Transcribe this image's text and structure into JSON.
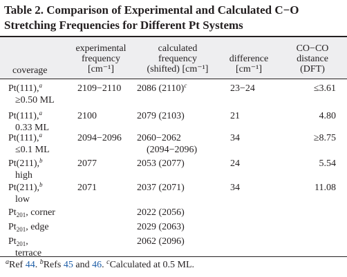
{
  "table": {
    "title_line1": "Table 2. Comparison of Experimental and Calculated C−O",
    "title_line2": "Stretching Frequencies for Different Pt Systems",
    "headers": {
      "coverage": "coverage",
      "experimental": [
        "experimental",
        "frequency",
        "[cm⁻¹]"
      ],
      "calculated": [
        "calculated",
        "frequency",
        "(shifted) [cm⁻¹]"
      ],
      "difference": [
        "difference",
        "[cm⁻¹]"
      ],
      "distance": [
        "CO−CO",
        "distance",
        "(DFT)"
      ]
    },
    "rows": [
      {
        "site": "Pt(111),",
        "sup": "a",
        "sub": "",
        "coverage2": "≥0.50 ML",
        "experimental": "2109−2110",
        "calculated": "2086 (2110)",
        "calc_sup": "c",
        "calculated2": "",
        "difference": "23−24",
        "distance": "≤3.61"
      },
      {
        "site": "Pt(111),",
        "sup": "a",
        "sub": "",
        "coverage2": "0.33 ML",
        "experimental": "2100",
        "calculated": "2079 (2103)",
        "calc_sup": "",
        "calculated2": "",
        "difference": "21",
        "distance": "4.80"
      },
      {
        "site": "Pt(111),",
        "sup": "a",
        "sub": "",
        "coverage2": "≤0.1 ML",
        "experimental": "2094−2096",
        "calculated": "2060−2062",
        "calc_sup": "",
        "calculated2": "(2094−2096)",
        "difference": "34",
        "distance": "≥8.75"
      },
      {
        "site": "Pt(211),",
        "sup": "b",
        "sub": "",
        "coverage2": "high",
        "experimental": "2077",
        "calculated": "2053 (2077)",
        "calc_sup": "",
        "calculated2": "",
        "difference": "24",
        "distance": "5.54"
      },
      {
        "site": "Pt(211),",
        "sup": "b",
        "sub": "",
        "coverage2": "low",
        "experimental": "2071",
        "calculated": "2037 (2071)",
        "calc_sup": "",
        "calculated2": "",
        "difference": "34",
        "distance": "11.08"
      },
      {
        "site": "Pt",
        "sup": "",
        "sub": "201",
        "tail": ", corner",
        "coverage2": "",
        "experimental": "",
        "calculated": "2022 (2056)",
        "calc_sup": "",
        "calculated2": "",
        "difference": "",
        "distance": ""
      },
      {
        "site": "Pt",
        "sup": "",
        "sub": "201",
        "tail": ", edge",
        "coverage2": "",
        "experimental": "",
        "calculated": "2029 (2063)",
        "calc_sup": "",
        "calculated2": "",
        "difference": "",
        "distance": ""
      },
      {
        "site": "Pt",
        "sup": "",
        "sub": "201",
        "tail": ",",
        "coverage2": "terrace",
        "experimental": "",
        "calculated": "2062 (2096)",
        "calc_sup": "",
        "calculated2": "",
        "difference": "",
        "distance": ""
      }
    ],
    "footnotes": {
      "a_mark": "a",
      "a_text": "Ref ",
      "a_ref": "44",
      "a_end": ". ",
      "b_mark": "b",
      "b_text": "Refs ",
      "b_ref1": "45",
      "b_and": " and ",
      "b_ref2": "46",
      "b_end": ". ",
      "c_mark": "c",
      "c_text": "Calculated at 0.5 ML."
    }
  }
}
